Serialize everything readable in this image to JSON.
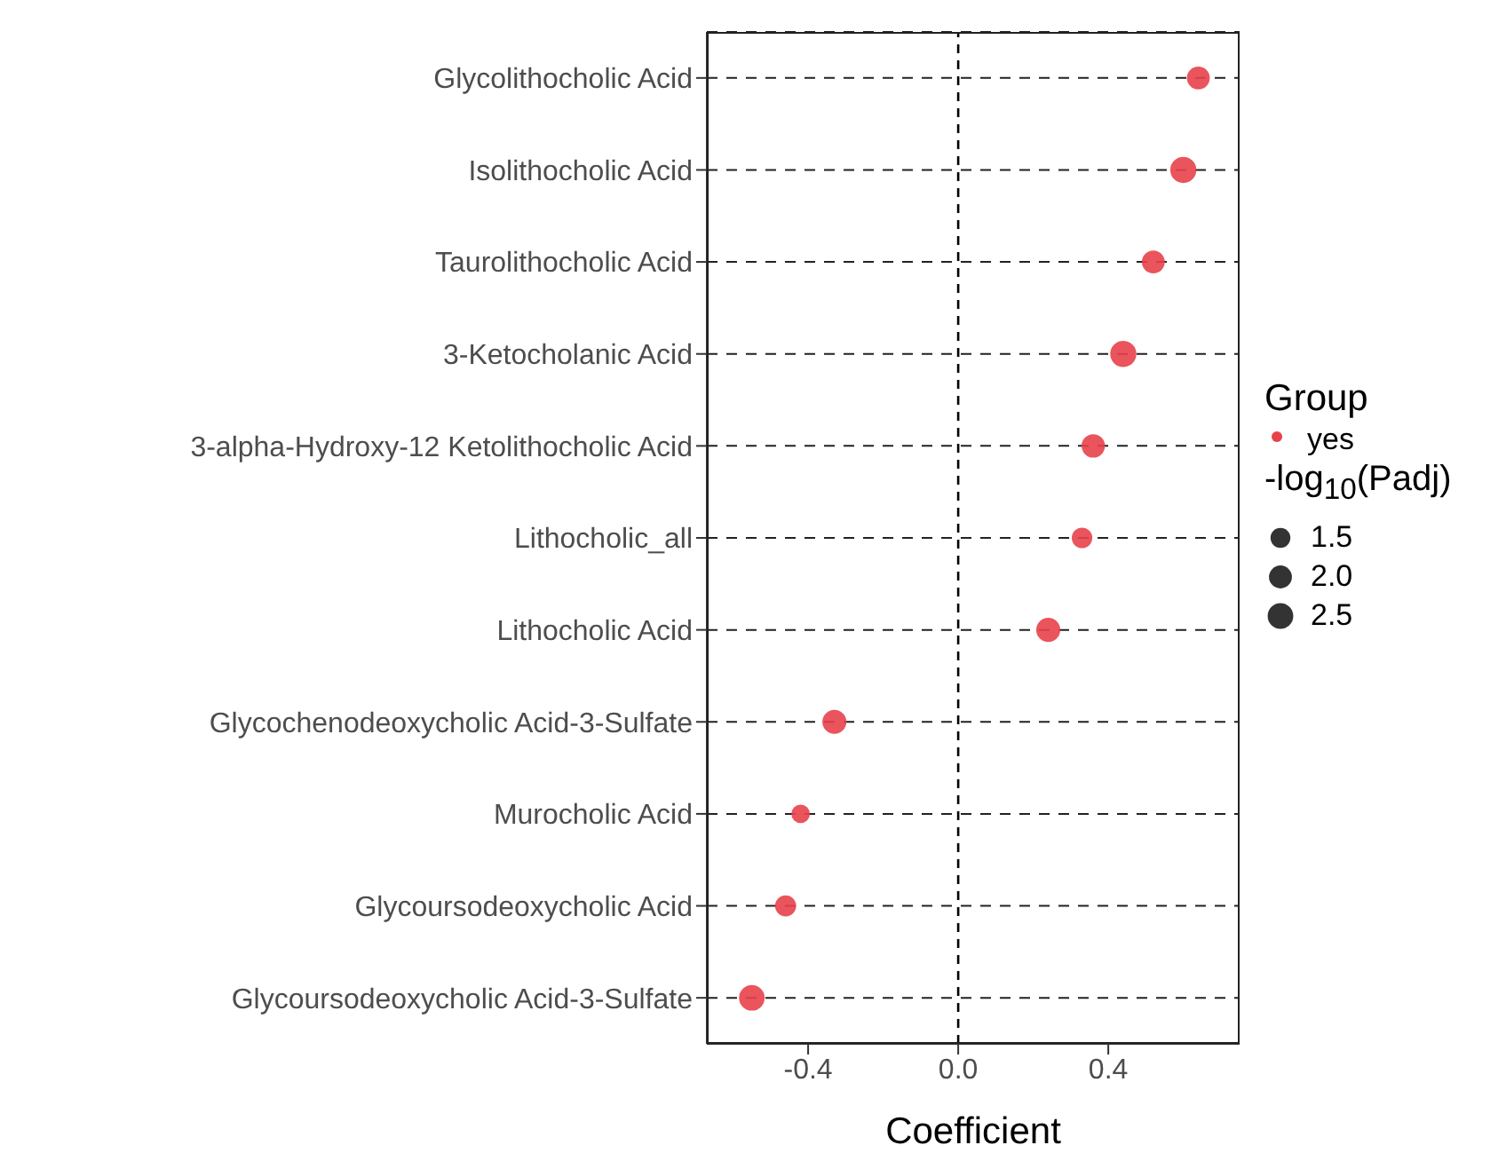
{
  "chart_data": {
    "type": "bubble",
    "orientation": "horizontal",
    "xlabel": "Coefficient",
    "legend_title": "Group",
    "annotations": [
      "-log$_{10}$(Padj)"
    ],
    "categories": [
      "Glycolithocholic Acid",
      "Isolithocholic Acid",
      "Taurolithocholic Acid",
      "3-Ketocholanic Acid",
      "3-alpha-Hydroxy-12 Ketolithocholic Acid",
      "Lithocholic_all",
      "Lithocholic Acid",
      "Glycochenodeoxycholic Acid-3-Sulfate",
      "Murocholic Acid",
      "Glycoursodeoxycholic Acid",
      "Glycoursodeoxycholic Acid-3-Sulfate"
    ],
    "series": [
      {
        "name": "yes",
        "color": "#e8414a",
        "values": [
          0.64,
          0.6,
          0.52,
          0.44,
          0.36,
          0.33,
          0.24,
          -0.33,
          -0.42,
          -0.46,
          -0.55
        ],
        "sizes": [
          2.0,
          2.6,
          2.0,
          2.6,
          2.1,
          1.6,
          2.2,
          2.2,
          1.3,
          1.7,
          2.5
        ]
      }
    ],
    "size_legend": [
      1.5,
      {
        "value": 2,
        "label": "2.0"
      },
      2.5
    ],
    "xlim": [
      -0.67,
      0.75
    ],
    "xticks": [
      {
        "value": -0.4,
        "label": "-0.4"
      },
      {
        "value": 0,
        "label": "0.0"
      },
      {
        "value": 0.4,
        "label": "0.4"
      }
    ],
    "ref_lines": [
      {
        "axis": "x",
        "value": 0,
        "line_style": "dashed"
      }
    ],
    "grid": "y",
    "legend": "right"
  }
}
